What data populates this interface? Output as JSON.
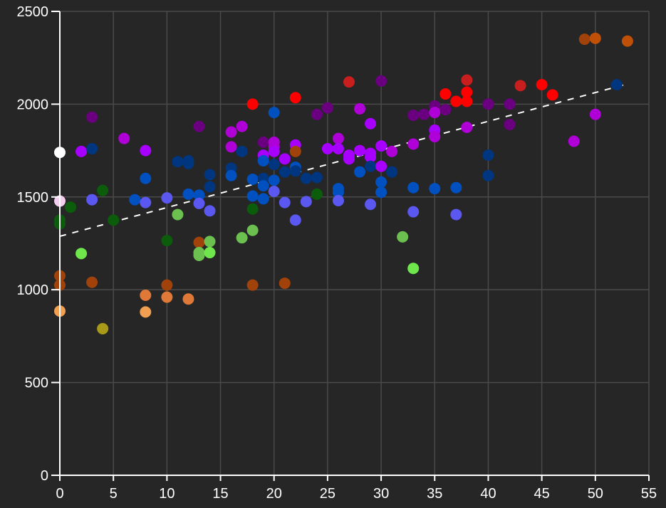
{
  "chart_data": {
    "type": "scatter",
    "title": "",
    "xlabel": "",
    "ylabel": "",
    "xlim": [
      0,
      55
    ],
    "ylim": [
      0,
      2500
    ],
    "x_ticks": [
      0,
      5,
      10,
      15,
      20,
      25,
      30,
      35,
      40,
      45,
      50,
      55
    ],
    "y_ticks": [
      0,
      500,
      1000,
      1500,
      2000,
      2500
    ],
    "grid": true,
    "legend": null,
    "background": "#262626",
    "grid_color": "#4a4a4a",
    "axis_color": "#ffffff",
    "trendline": {
      "style": "dashed",
      "color": "#ffffff",
      "x": [
        0,
        53
      ],
      "y": [
        1288,
        2109
      ]
    },
    "points": [
      {
        "x": 0,
        "y": 1740,
        "color": "#ffffff"
      },
      {
        "x": 0,
        "y": 1478,
        "color": "#f5cdef"
      },
      {
        "x": 0,
        "y": 1375,
        "color": "#0b5c0b"
      },
      {
        "x": 0,
        "y": 1355,
        "color": "#0b5c0b"
      },
      {
        "x": 0,
        "y": 1075,
        "color": "#a0420a"
      },
      {
        "x": 0,
        "y": 1025,
        "color": "#a0420a"
      },
      {
        "x": 0,
        "y": 885,
        "color": "#f0a050"
      },
      {
        "x": 1,
        "y": 1445,
        "color": "#0b5c0b"
      },
      {
        "x": 2,
        "y": 1745,
        "color": "#a800ff"
      },
      {
        "x": 2,
        "y": 1195,
        "color": "#6ee64c"
      },
      {
        "x": 3,
        "y": 1930,
        "color": "#6a0080"
      },
      {
        "x": 3,
        "y": 1760,
        "color": "#003580"
      },
      {
        "x": 3,
        "y": 1485,
        "color": "#5a58f0"
      },
      {
        "x": 3,
        "y": 1040,
        "color": "#a0420a"
      },
      {
        "x": 4,
        "y": 1535,
        "color": "#0b5c0b"
      },
      {
        "x": 4,
        "y": 790,
        "color": "#a89a18"
      },
      {
        "x": 5,
        "y": 1375,
        "color": "#0b5c0b"
      },
      {
        "x": 6,
        "y": 1815,
        "color": "#b000d8"
      },
      {
        "x": 7,
        "y": 1485,
        "color": "#0050c0"
      },
      {
        "x": 8,
        "y": 1750,
        "color": "#a800ff"
      },
      {
        "x": 8,
        "y": 1600,
        "color": "#0050c0"
      },
      {
        "x": 8,
        "y": 1470,
        "color": "#5a58f0"
      },
      {
        "x": 8,
        "y": 970,
        "color": "#e07838"
      },
      {
        "x": 8,
        "y": 880,
        "color": "#f0a050"
      },
      {
        "x": 10,
        "y": 1495,
        "color": "#5a58f0"
      },
      {
        "x": 10,
        "y": 1265,
        "color": "#0b5c0b"
      },
      {
        "x": 10,
        "y": 1025,
        "color": "#a0420a"
      },
      {
        "x": 10,
        "y": 960,
        "color": "#e07838"
      },
      {
        "x": 11,
        "y": 1690,
        "color": "#003580"
      },
      {
        "x": 11,
        "y": 1405,
        "color": "#6cc050"
      },
      {
        "x": 12,
        "y": 1695,
        "color": "#003580"
      },
      {
        "x": 12,
        "y": 1680,
        "color": "#003580"
      },
      {
        "x": 12,
        "y": 1515,
        "color": "#0050c0"
      },
      {
        "x": 12,
        "y": 950,
        "color": "#e07838"
      },
      {
        "x": 13,
        "y": 1880,
        "color": "#6a0080"
      },
      {
        "x": 13,
        "y": 1510,
        "color": "#0050c0"
      },
      {
        "x": 13,
        "y": 1465,
        "color": "#5a58f0"
      },
      {
        "x": 13,
        "y": 1255,
        "color": "#a0420a"
      },
      {
        "x": 13,
        "y": 1200,
        "color": "#6cc050"
      },
      {
        "x": 13,
        "y": 1185,
        "color": "#6cc050"
      },
      {
        "x": 14,
        "y": 1620,
        "color": "#003580"
      },
      {
        "x": 14,
        "y": 1555,
        "color": "#003580"
      },
      {
        "x": 14,
        "y": 1425,
        "color": "#5a58f0"
      },
      {
        "x": 14,
        "y": 1260,
        "color": "#6cc050"
      },
      {
        "x": 14,
        "y": 1200,
        "color": "#6ee64c"
      },
      {
        "x": 16,
        "y": 1850,
        "color": "#b000d8"
      },
      {
        "x": 16,
        "y": 1770,
        "color": "#b000d8"
      },
      {
        "x": 16,
        "y": 1655,
        "color": "#003580"
      },
      {
        "x": 16,
        "y": 1615,
        "color": "#0050c0"
      },
      {
        "x": 17,
        "y": 1880,
        "color": "#b000d8"
      },
      {
        "x": 17,
        "y": 1745,
        "color": "#003580"
      },
      {
        "x": 17,
        "y": 1280,
        "color": "#6cc050"
      },
      {
        "x": 18,
        "y": 2000,
        "color": "#ff0000"
      },
      {
        "x": 18,
        "y": 1595,
        "color": "#0050c0"
      },
      {
        "x": 18,
        "y": 1505,
        "color": "#0050c0"
      },
      {
        "x": 18,
        "y": 1435,
        "color": "#0b5c0b"
      },
      {
        "x": 18,
        "y": 1320,
        "color": "#6cc050"
      },
      {
        "x": 18,
        "y": 1025,
        "color": "#a0420a"
      },
      {
        "x": 19,
        "y": 1795,
        "color": "#6a0080"
      },
      {
        "x": 19,
        "y": 1725,
        "color": "#a800ff"
      },
      {
        "x": 19,
        "y": 1695,
        "color": "#0050c0"
      },
      {
        "x": 19,
        "y": 1600,
        "color": "#003580"
      },
      {
        "x": 19,
        "y": 1560,
        "color": "#0050c0"
      },
      {
        "x": 19,
        "y": 1490,
        "color": "#0050c0"
      },
      {
        "x": 20,
        "y": 1955,
        "color": "#0050c0"
      },
      {
        "x": 20,
        "y": 1795,
        "color": "#b000d8"
      },
      {
        "x": 20,
        "y": 1770,
        "color": "#b000d8"
      },
      {
        "x": 20,
        "y": 1745,
        "color": "#a800ff"
      },
      {
        "x": 20,
        "y": 1675,
        "color": "#003580"
      },
      {
        "x": 20,
        "y": 1590,
        "color": "#0050c0"
      },
      {
        "x": 20,
        "y": 1530,
        "color": "#5a58f0"
      },
      {
        "x": 21,
        "y": 1705,
        "color": "#a800ff"
      },
      {
        "x": 21,
        "y": 1635,
        "color": "#003580"
      },
      {
        "x": 21,
        "y": 1470,
        "color": "#5a58f0"
      },
      {
        "x": 21,
        "y": 1035,
        "color": "#a0420a"
      },
      {
        "x": 22,
        "y": 2035,
        "color": "#ff0000"
      },
      {
        "x": 22,
        "y": 1780,
        "color": "#a800ff"
      },
      {
        "x": 22,
        "y": 1745,
        "color": "#a0420a"
      },
      {
        "x": 22,
        "y": 1660,
        "color": "#0050c0"
      },
      {
        "x": 22,
        "y": 1640,
        "color": "#003580"
      },
      {
        "x": 22,
        "y": 1375,
        "color": "#5a58f0"
      },
      {
        "x": 23,
        "y": 1600,
        "color": "#003580"
      },
      {
        "x": 23,
        "y": 1475,
        "color": "#5a58f0"
      },
      {
        "x": 24,
        "y": 1945,
        "color": "#6a0080"
      },
      {
        "x": 24,
        "y": 1605,
        "color": "#003580"
      },
      {
        "x": 24,
        "y": 1515,
        "color": "#0b5c0b"
      },
      {
        "x": 25,
        "y": 1980,
        "color": "#6a0080"
      },
      {
        "x": 25,
        "y": 1760,
        "color": "#a800ff"
      },
      {
        "x": 26,
        "y": 1815,
        "color": "#b000d8"
      },
      {
        "x": 26,
        "y": 1760,
        "color": "#a800ff"
      },
      {
        "x": 26,
        "y": 1545,
        "color": "#0050c0"
      },
      {
        "x": 26,
        "y": 1525,
        "color": "#0050c0"
      },
      {
        "x": 26,
        "y": 1480,
        "color": "#5a58f0"
      },
      {
        "x": 27,
        "y": 2120,
        "color": "#c81e1e"
      },
      {
        "x": 27,
        "y": 1725,
        "color": "#a800ff"
      },
      {
        "x": 27,
        "y": 1705,
        "color": "#a800ff"
      },
      {
        "x": 28,
        "y": 1975,
        "color": "#b000d8"
      },
      {
        "x": 28,
        "y": 1750,
        "color": "#a800ff"
      },
      {
        "x": 28,
        "y": 1635,
        "color": "#0050c0"
      },
      {
        "x": 29,
        "y": 1895,
        "color": "#a800ff"
      },
      {
        "x": 29,
        "y": 1735,
        "color": "#a800ff"
      },
      {
        "x": 29,
        "y": 1715,
        "color": "#a800ff"
      },
      {
        "x": 29,
        "y": 1665,
        "color": "#003580"
      },
      {
        "x": 29,
        "y": 1460,
        "color": "#5a58f0"
      },
      {
        "x": 30,
        "y": 2125,
        "color": "#6a0080"
      },
      {
        "x": 30,
        "y": 1775,
        "color": "#a800ff"
      },
      {
        "x": 30,
        "y": 1665,
        "color": "#a800ff"
      },
      {
        "x": 30,
        "y": 1580,
        "color": "#0050c0"
      },
      {
        "x": 30,
        "y": 1525,
        "color": "#0050c0"
      },
      {
        "x": 31,
        "y": 1745,
        "color": "#b000d8"
      },
      {
        "x": 31,
        "y": 1635,
        "color": "#003580"
      },
      {
        "x": 32,
        "y": 1285,
        "color": "#6cc050"
      },
      {
        "x": 33,
        "y": 1940,
        "color": "#6a0080"
      },
      {
        "x": 33,
        "y": 1785,
        "color": "#b000d8"
      },
      {
        "x": 33,
        "y": 1550,
        "color": "#0050c0"
      },
      {
        "x": 33,
        "y": 1420,
        "color": "#5a58f0"
      },
      {
        "x": 33,
        "y": 1115,
        "color": "#6ee64c"
      },
      {
        "x": 34,
        "y": 1945,
        "color": "#6a0080"
      },
      {
        "x": 35,
        "y": 1990,
        "color": "#6a0080"
      },
      {
        "x": 35,
        "y": 1955,
        "color": "#b000d8"
      },
      {
        "x": 35,
        "y": 1860,
        "color": "#a800ff"
      },
      {
        "x": 35,
        "y": 1825,
        "color": "#b000d8"
      },
      {
        "x": 35,
        "y": 1545,
        "color": "#0050c0"
      },
      {
        "x": 36,
        "y": 2055,
        "color": "#ff0000"
      },
      {
        "x": 36,
        "y": 1970,
        "color": "#6a0080"
      },
      {
        "x": 37,
        "y": 2015,
        "color": "#ff0000"
      },
      {
        "x": 37,
        "y": 1550,
        "color": "#0050c0"
      },
      {
        "x": 37,
        "y": 1405,
        "color": "#5a58f0"
      },
      {
        "x": 38,
        "y": 2130,
        "color": "#c81e1e"
      },
      {
        "x": 38,
        "y": 2065,
        "color": "#ff0000"
      },
      {
        "x": 38,
        "y": 2015,
        "color": "#ff0000"
      },
      {
        "x": 38,
        "y": 1875,
        "color": "#b000d8"
      },
      {
        "x": 40,
        "y": 2000,
        "color": "#6a0080"
      },
      {
        "x": 40,
        "y": 1725,
        "color": "#003580"
      },
      {
        "x": 40,
        "y": 1615,
        "color": "#003580"
      },
      {
        "x": 42,
        "y": 2000,
        "color": "#6a0080"
      },
      {
        "x": 42,
        "y": 1890,
        "color": "#6a0080"
      },
      {
        "x": 43,
        "y": 2100,
        "color": "#c81e1e"
      },
      {
        "x": 45,
        "y": 2105,
        "color": "#ff0000"
      },
      {
        "x": 46,
        "y": 2050,
        "color": "#ff0000"
      },
      {
        "x": 48,
        "y": 1800,
        "color": "#b000d8"
      },
      {
        "x": 49,
        "y": 2350,
        "color": "#a0420a"
      },
      {
        "x": 50,
        "y": 2355,
        "color": "#c05008"
      },
      {
        "x": 50,
        "y": 1945,
        "color": "#b000d8"
      },
      {
        "x": 52,
        "y": 2105,
        "color": "#003580"
      },
      {
        "x": 53,
        "y": 2340,
        "color": "#c05008"
      }
    ]
  }
}
